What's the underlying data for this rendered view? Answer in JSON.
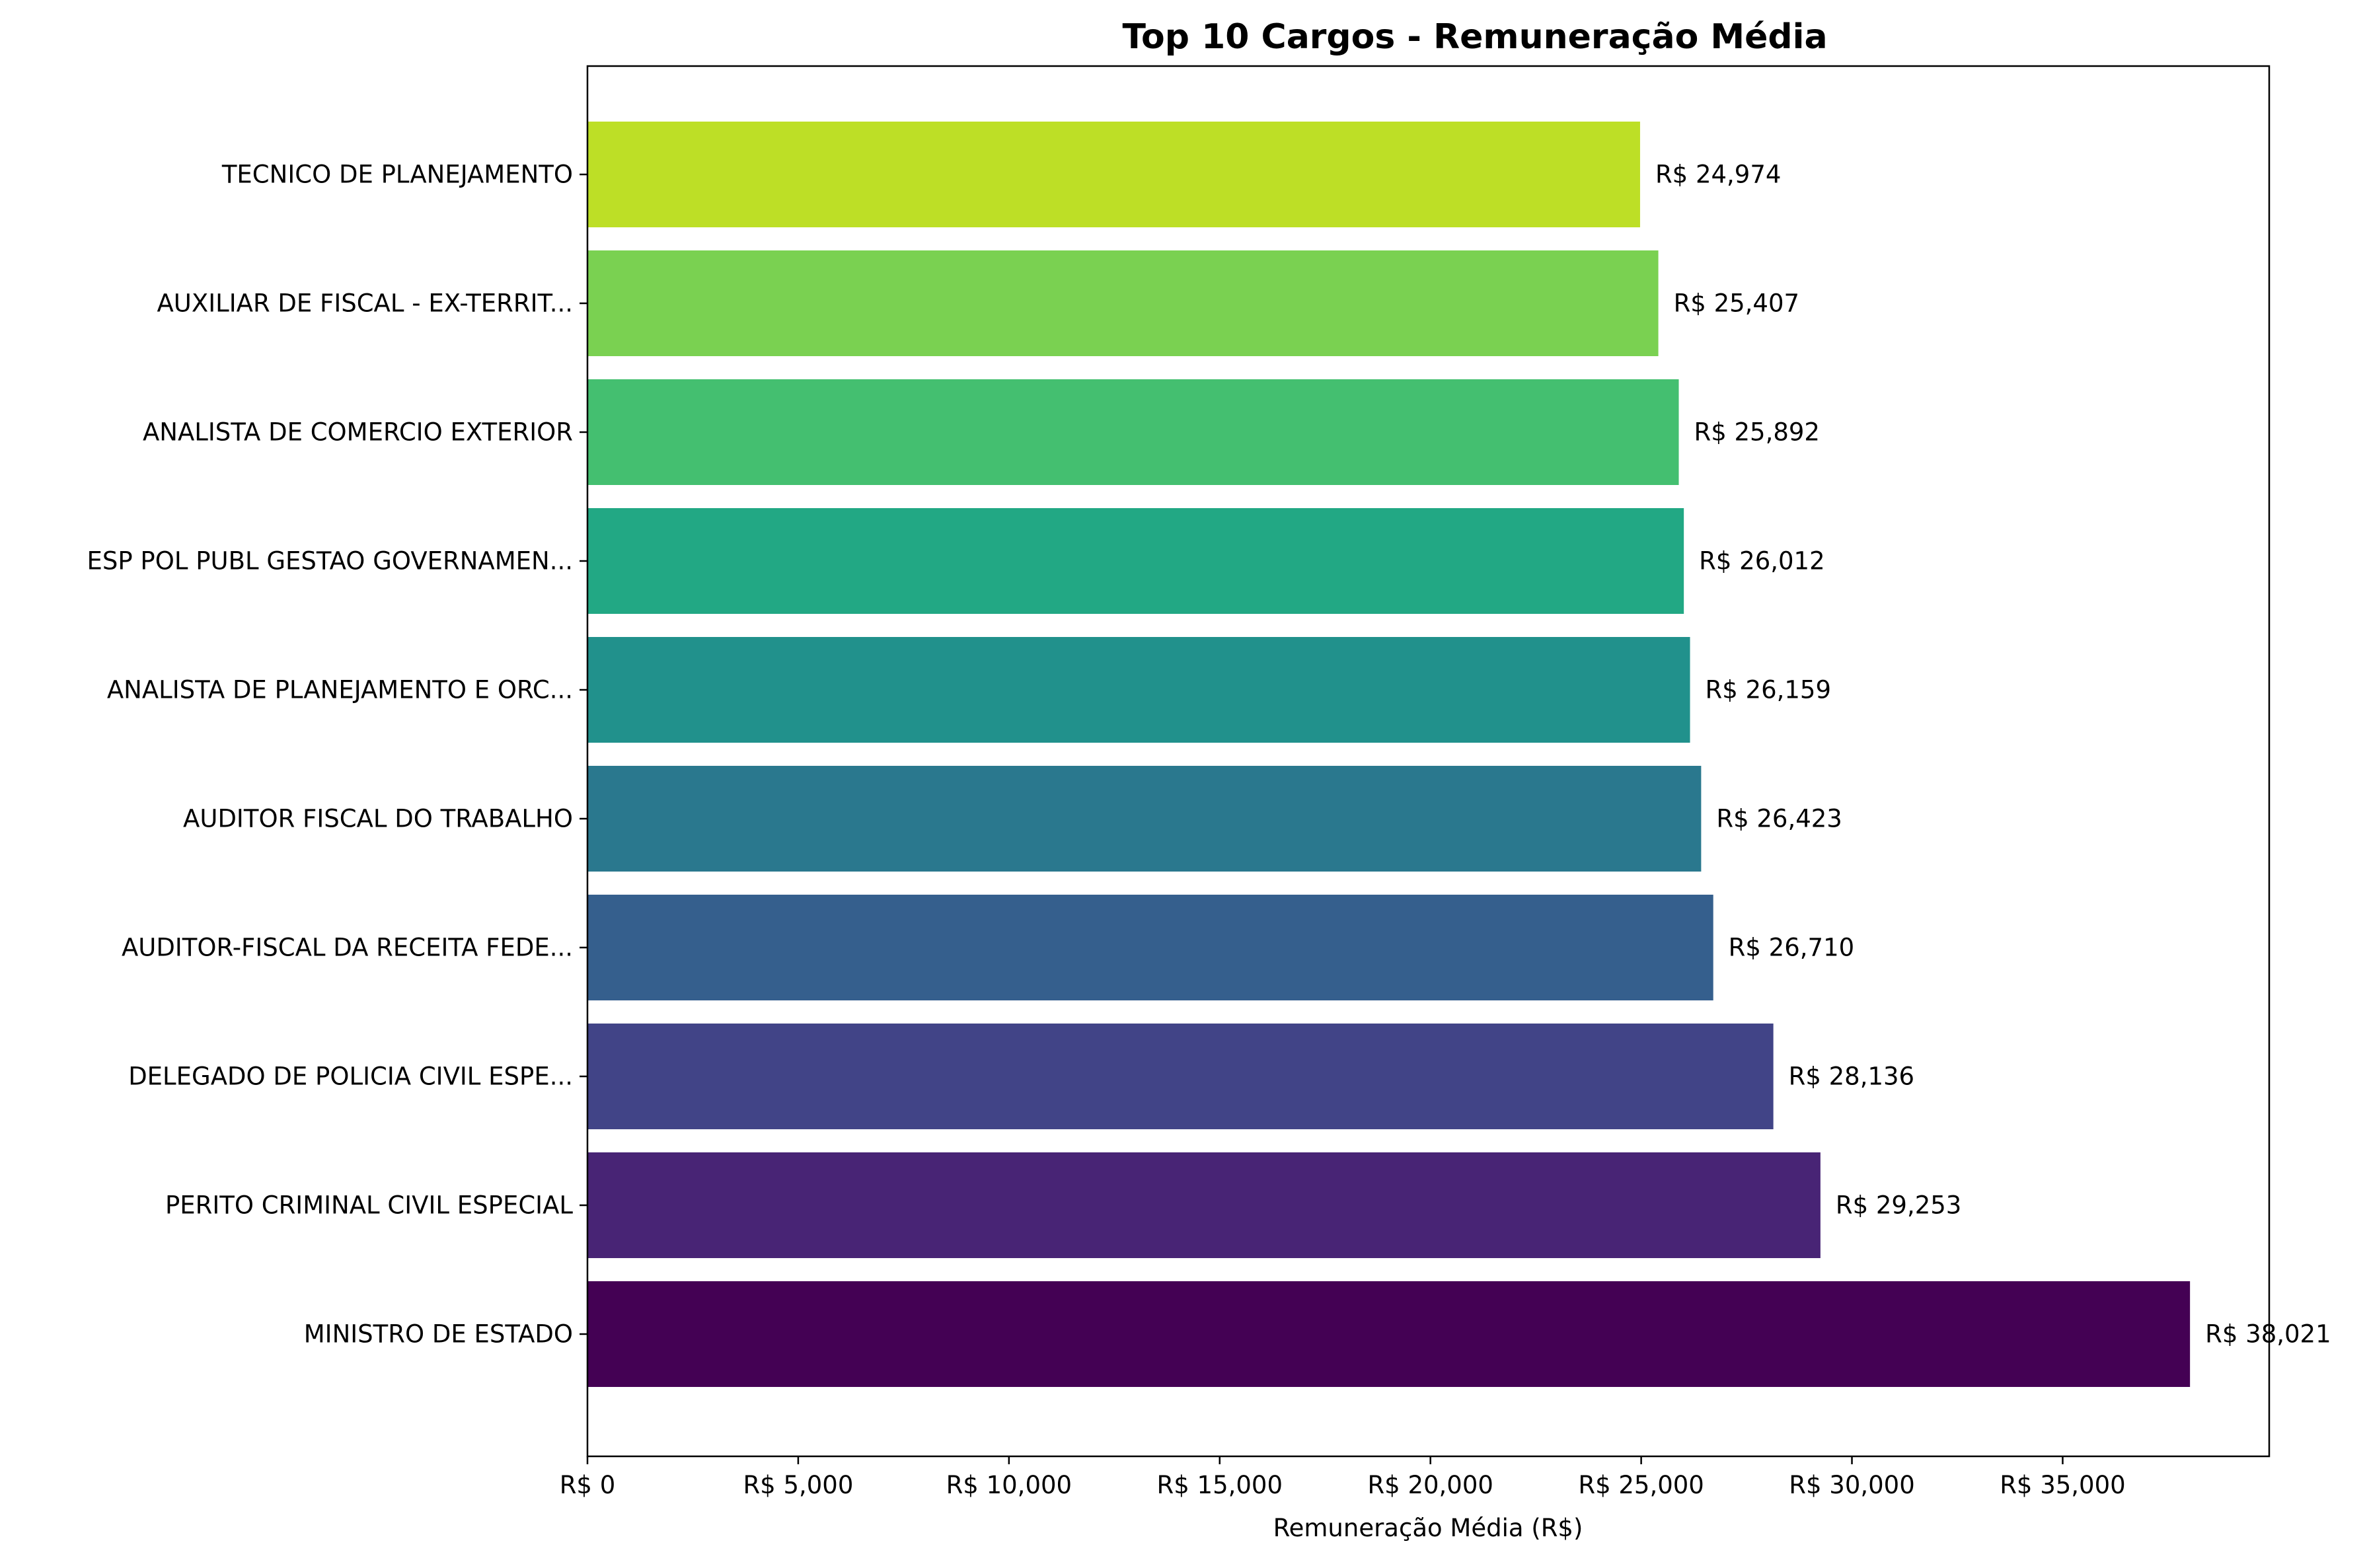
{
  "chart_data": {
    "type": "bar",
    "orientation": "horizontal",
    "title": "Top 10 Cargos - Remuneração Média",
    "xlabel": "Remuneração Média (R$)",
    "ylabel": "",
    "xlim": [
      0,
      39900
    ],
    "x_ticks": [
      0,
      5000,
      10000,
      15000,
      20000,
      25000,
      30000,
      35000
    ],
    "x_tick_labels": [
      "R$ 0",
      "R$ 5,000",
      "R$ 10,000",
      "R$ 15,000",
      "R$ 20,000",
      "R$ 25,000",
      "R$ 30,000",
      "R$ 35,000"
    ],
    "grid": false,
    "legend": "none",
    "bars": [
      {
        "category": "MINISTRO DE ESTADO",
        "value": 38021,
        "label": "R$ 38,021",
        "color": "#440154"
      },
      {
        "category": "PERITO CRIMINAL CIVIL ESPECIAL",
        "value": 29253,
        "label": "R$ 29,253",
        "color": "#482475"
      },
      {
        "category": "DELEGADO DE POLICIA CIVIL ESPE...",
        "value": 28136,
        "label": "R$ 28,136",
        "color": "#414487"
      },
      {
        "category": "AUDITOR-FISCAL DA RECEITA FEDE...",
        "value": 26710,
        "label": "R$ 26,710",
        "color": "#355f8d"
      },
      {
        "category": "AUDITOR FISCAL DO TRABALHO",
        "value": 26423,
        "label": "R$ 26,423",
        "color": "#2a788e"
      },
      {
        "category": "ANALISTA DE PLANEJAMENTO E ORC...",
        "value": 26159,
        "label": "R$ 26,159",
        "color": "#21918c"
      },
      {
        "category": "ESP POL PUBL GESTAO GOVERNAMEN...",
        "value": 26012,
        "label": "R$ 26,012",
        "color": "#22a884"
      },
      {
        "category": "ANALISTA DE COMERCIO EXTERIOR",
        "value": 25892,
        "label": "R$ 25,892",
        "color": "#44bf70"
      },
      {
        "category": "AUXILIAR DE FISCAL - EX-TERRIT...",
        "value": 25407,
        "label": "R$ 25,407",
        "color": "#7ad151"
      },
      {
        "category": "TECNICO DE PLANEJAMENTO",
        "value": 24974,
        "label": "R$ 24,974",
        "color": "#bddf26"
      }
    ]
  }
}
